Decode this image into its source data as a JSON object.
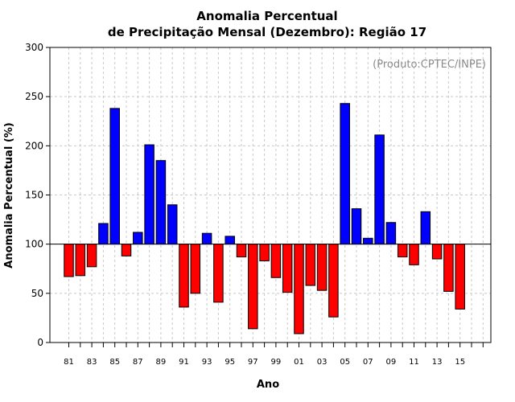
{
  "chart_data": {
    "type": "bar",
    "title": "Anomalia Percentual",
    "subtitle": "de Precipitação Mensal (Dezembro): Região 17",
    "xlabel": "Ano",
    "ylabel": "Anomalia Percentual (%)",
    "credit": "(Produto:CPTEC/INPE)",
    "ylim": [
      0,
      300
    ],
    "yticks": [
      "0",
      "50",
      "100",
      "150",
      "200",
      "250",
      "300"
    ],
    "baseline": 100,
    "x_tick_labels": [
      "81",
      "83",
      "85",
      "87",
      "89",
      "91",
      "93",
      "95",
      "97",
      "99",
      "01",
      "03",
      "05",
      "07",
      "09",
      "11",
      "13",
      "15"
    ],
    "categories": [
      "1981",
      "1982",
      "1983",
      "1984",
      "1985",
      "1986",
      "1987",
      "1988",
      "1989",
      "1990",
      "1991",
      "1992",
      "1993",
      "1994",
      "1995",
      "1996",
      "1997",
      "1998",
      "1999",
      "2000",
      "2001",
      "2002",
      "2003",
      "2004",
      "2005",
      "2006",
      "2007",
      "2008",
      "2009",
      "2010",
      "2011",
      "2012",
      "2013",
      "2014",
      "2015"
    ],
    "values": [
      67,
      68,
      77,
      121,
      238,
      88,
      112,
      201,
      185,
      140,
      36,
      50,
      111,
      41,
      108,
      87,
      14,
      83,
      66,
      51,
      9,
      58,
      53,
      26,
      243,
      136,
      106,
      211,
      122,
      87,
      79,
      133,
      85,
      52,
      34
    ],
    "colors": {
      "above": "#0000ff",
      "below": "#ff0000"
    }
  }
}
